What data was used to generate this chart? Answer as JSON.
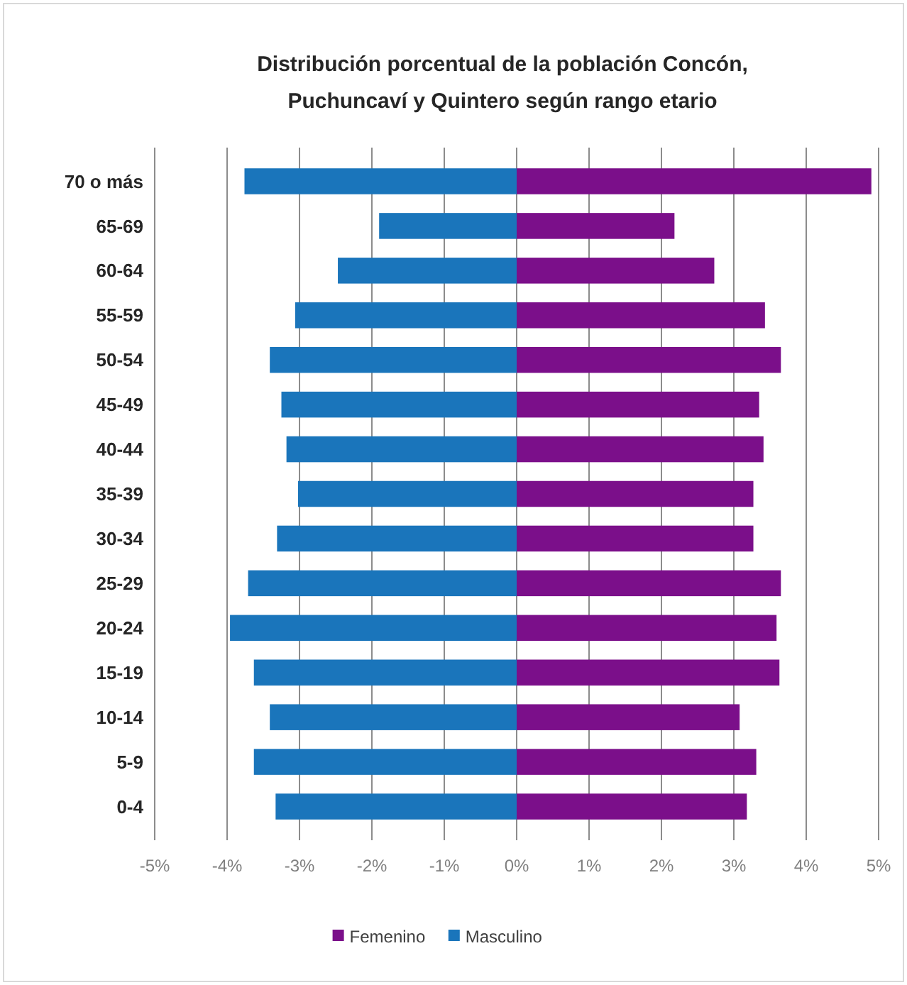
{
  "chart_data": {
    "type": "bar",
    "orientation": "horizontal",
    "stacked": true,
    "title": "Distribución porcentual de la población Concón,\nPuchuncaví y Quintero según rango etario",
    "categories": [
      "70 o más",
      "65-69",
      "60-64",
      "55-59",
      "50-54",
      "45-49",
      "40-44",
      "35-39",
      "30-34",
      "25-29",
      "20-24",
      "15-19",
      "10-14",
      "5-9",
      "0-4"
    ],
    "series": [
      {
        "name": "Femenino",
        "color": "#7b0f8a",
        "values": [
          4.9,
          2.18,
          2.73,
          3.43,
          3.65,
          3.35,
          3.41,
          3.27,
          3.27,
          3.65,
          3.59,
          3.63,
          3.08,
          3.31,
          3.18
        ]
      },
      {
        "name": "Masculino",
        "color": "#1a75bb",
        "values": [
          -3.76,
          -1.9,
          -2.47,
          -3.06,
          -3.41,
          -3.25,
          -3.18,
          -3.02,
          -3.31,
          -3.71,
          -3.96,
          -3.63,
          -3.41,
          -3.63,
          -3.33
        ]
      }
    ],
    "xlim": [
      -5,
      5
    ],
    "xticks": [
      {
        "value": -5,
        "label": "-5%"
      },
      {
        "value": -4,
        "label": "-4%"
      },
      {
        "value": -3,
        "label": "-3%"
      },
      {
        "value": -2,
        "label": "-2%"
      },
      {
        "value": -1,
        "label": "-1%"
      },
      {
        "value": 0,
        "label": "0%"
      },
      {
        "value": 1,
        "label": "1%"
      },
      {
        "value": 2,
        "label": "2%"
      },
      {
        "value": 3,
        "label": "3%"
      },
      {
        "value": 4,
        "label": "4%"
      },
      {
        "value": 5,
        "label": "5%"
      }
    ],
    "grid": "x",
    "legend": "bottom"
  }
}
